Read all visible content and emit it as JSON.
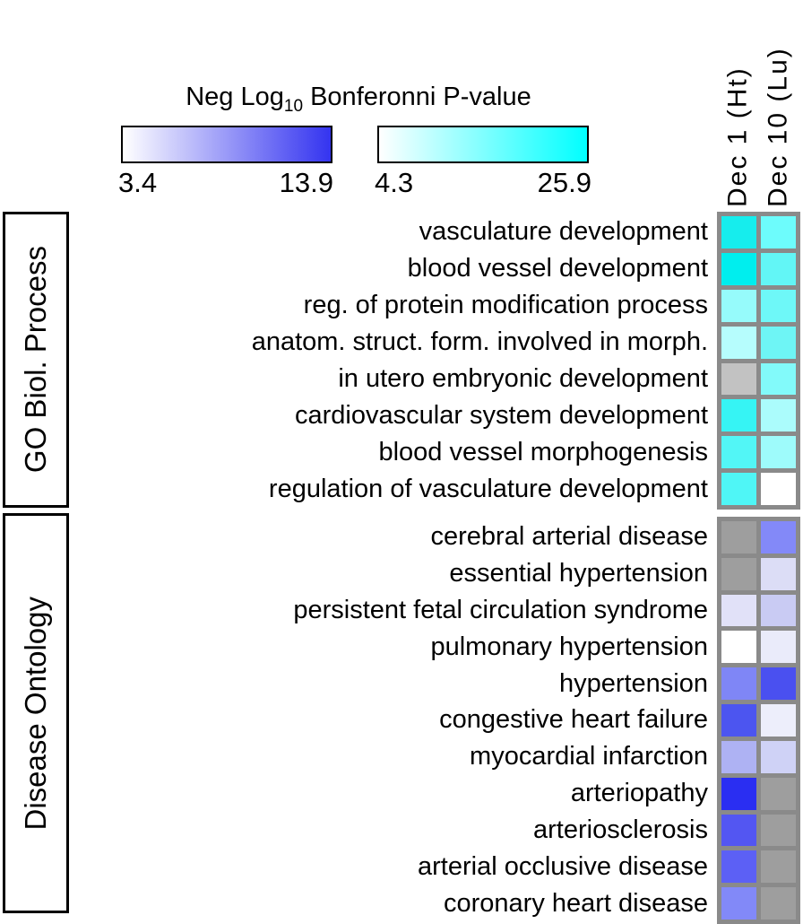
{
  "legend": {
    "title_prefix": "Neg Log",
    "title_subscript": "10",
    "title_suffix": " Bonferonni P-value",
    "blue_scale": {
      "min": "3.4",
      "max": "13.9",
      "start_color": "#ffffff",
      "end_color": "#3434f0"
    },
    "cyan_scale": {
      "min": "4.3",
      "max": "25.9",
      "start_color": "#ffffff",
      "end_color": "#00ffff"
    }
  },
  "chart_data": {
    "type": "heatmap",
    "title": "Neg Log10 Bonferonni P-value",
    "columns": [
      "Dec 1 (Ht)",
      "Dec 10 (Lu)"
    ],
    "colorbars": [
      {
        "name": "blue",
        "applies_to": "Disease Ontology rows",
        "range": [
          3.4,
          13.9
        ],
        "gradient": [
          "#ffffff",
          "#3434f0"
        ]
      },
      {
        "name": "cyan",
        "applies_to": "GO Biol. Process rows",
        "range": [
          4.3,
          25.9
        ],
        "gradient": [
          "#ffffff",
          "#00ffff"
        ]
      }
    ],
    "grid_color": "#8a8a8a",
    "sections": [
      {
        "name": "GO Biol. Process",
        "colormap": "cyan",
        "na_color": "#c2c2c2",
        "rows": [
          {
            "label": "vasculature development",
            "cells": [
              {
                "color": "#16eded",
                "est_value": 24.0
              },
              {
                "color": "#6dfcfc",
                "est_value": 16.7
              }
            ]
          },
          {
            "label": "blood vessel development",
            "cells": [
              {
                "color": "#00eeee",
                "est_value": 25.9
              },
              {
                "color": "#62f6f6",
                "est_value": 17.6
              }
            ]
          },
          {
            "label": "reg. of protein modification process",
            "cells": [
              {
                "color": "#96fbfb",
                "est_value": 13.2
              },
              {
                "color": "#6ef8f8",
                "est_value": 16.6
              }
            ]
          },
          {
            "label": "anatom. struct. form. involved in morph.",
            "cells": [
              {
                "color": "#b6fdfd",
                "est_value": 10.5
              },
              {
                "color": "#6ef5f5",
                "est_value": 16.6
              }
            ]
          },
          {
            "label": "in utero embryonic development",
            "cells": [
              {
                "color": null,
                "est_value": null
              },
              {
                "color": "#82fafa",
                "est_value": 14.9
              }
            ]
          },
          {
            "label": "cardiovascular system development",
            "cells": [
              {
                "color": "#36f4f4",
                "est_value": 21.3
              },
              {
                "color": "#abfcfc",
                "est_value": 11.4
              }
            ]
          },
          {
            "label": "blood vessel morphogenesis",
            "cells": [
              {
                "color": "#52f6f6",
                "est_value": 19.0
              },
              {
                "color": "#9efbfb",
                "est_value": 12.5
              }
            ]
          },
          {
            "label": "regulation of vasculature development",
            "cells": [
              {
                "color": "#4ff6f6",
                "est_value": 19.2
              },
              {
                "color": "#ffffff",
                "est_value": 4.3
              }
            ]
          }
        ]
      },
      {
        "name": "Disease Ontology",
        "colormap": "blue",
        "na_color": "#9e9e9e",
        "rows": [
          {
            "label": "cerebral arterial disease",
            "cells": [
              {
                "color": null,
                "est_value": null
              },
              {
                "color": "#8389f8",
                "est_value": 9.8
              }
            ]
          },
          {
            "label": "essential hypertension",
            "cells": [
              {
                "color": null,
                "est_value": null
              },
              {
                "color": "#dcddf6",
                "est_value": 5.2
              }
            ]
          },
          {
            "label": "persistent fetal circulation syndrome",
            "cells": [
              {
                "color": "#e1e1f8",
                "est_value": 5.0
              },
              {
                "color": "#c9cbf3",
                "est_value": 6.2
              }
            ]
          },
          {
            "label": "pulmonary hypertension",
            "cells": [
              {
                "color": "#ffffff",
                "est_value": 3.4
              },
              {
                "color": "#eaebfa",
                "est_value": 4.5
              }
            ]
          },
          {
            "label": "hypertension",
            "cells": [
              {
                "color": "#7f86f6",
                "est_value": 10.0
              },
              {
                "color": "#4a50f0",
                "est_value": 12.8
              }
            ]
          },
          {
            "label": "congestive heart failure",
            "cells": [
              {
                "color": "#4c55f0",
                "est_value": 12.7
              },
              {
                "color": "#edeefb",
                "est_value": 4.3
              }
            ]
          },
          {
            "label": "myocardial infarction",
            "cells": [
              {
                "color": "#aeb2f3",
                "est_value": 7.6
              },
              {
                "color": "#cfd2f6",
                "est_value": 5.9
              }
            ]
          },
          {
            "label": "arteriopathy",
            "cells": [
              {
                "color": "#2a2ef2",
                "est_value": 13.9
              },
              {
                "color": null,
                "est_value": null
              }
            ]
          },
          {
            "label": "arteriosclerosis",
            "cells": [
              {
                "color": "#5356f2",
                "est_value": 12.3
              },
              {
                "color": null,
                "est_value": null
              }
            ]
          },
          {
            "label": "arterial occlusive disease",
            "cells": [
              {
                "color": "#5c60f5",
                "est_value": 11.8
              },
              {
                "color": null,
                "est_value": null
              }
            ]
          },
          {
            "label": "coronary heart disease",
            "cells": [
              {
                "color": "#8289f8",
                "est_value": 9.9
              },
              {
                "color": null,
                "est_value": null
              }
            ]
          }
        ]
      }
    ]
  }
}
